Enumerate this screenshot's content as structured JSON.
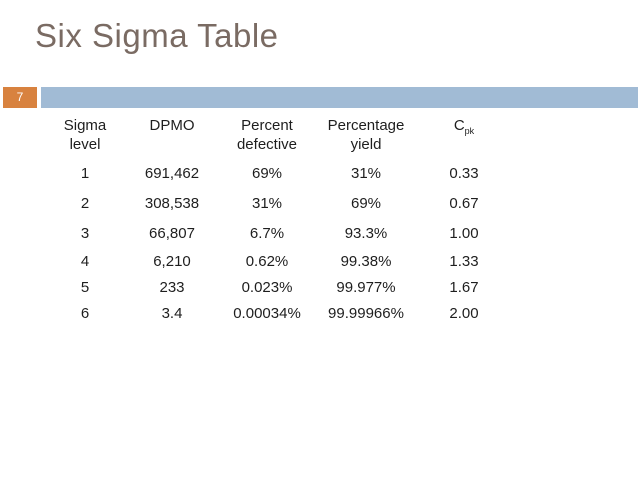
{
  "slide": {
    "title": "Six Sigma Table",
    "page_number": "7"
  },
  "colors": {
    "background": "#ffffff",
    "title_text": "#7a6b63",
    "page_number_box": "#d8823f",
    "page_number_text": "#ffffff",
    "divider_bar": "#a1bbd5",
    "table_text": "#1e1e1e"
  },
  "table": {
    "headers": [
      {
        "line1": "Sigma",
        "line2": "level"
      },
      {
        "line1": "DPMO"
      },
      {
        "line1": "Percent",
        "line2": "defective"
      },
      {
        "line1": "Percentage",
        "line2": "yield"
      },
      {
        "text": "C",
        "sub": "pk"
      }
    ],
    "rows": [
      [
        "1",
        "691,462",
        "69%",
        "31%",
        "0.33"
      ],
      [
        "2",
        "308,538",
        "31%",
        "69%",
        "0.67"
      ],
      [
        "3",
        "66,807",
        "6.7%",
        "93.3%",
        "1.00"
      ],
      [
        "4",
        "6,210",
        "0.62%",
        "99.38%",
        "1.33"
      ],
      [
        "5",
        "233",
        "0.023%",
        "99.977%",
        "1.67"
      ],
      [
        "6",
        "3.4",
        "0.00034%",
        "99.99966%",
        "2.00"
      ]
    ]
  },
  "chart_data": {
    "type": "table",
    "title": "Six Sigma Table",
    "columns": [
      "Sigma level",
      "DPMO",
      "Percent defective",
      "Percentage yield",
      "Cpk"
    ],
    "rows": [
      [
        "1",
        "691,462",
        "69%",
        "31%",
        "0.33"
      ],
      [
        "2",
        "308,538",
        "31%",
        "69%",
        "0.67"
      ],
      [
        "3",
        "66,807",
        "6.7%",
        "93.3%",
        "1.00"
      ],
      [
        "4",
        "6,210",
        "0.62%",
        "99.38%",
        "1.33"
      ],
      [
        "5",
        "233",
        "0.023%",
        "99.977%",
        "1.67"
      ],
      [
        "6",
        "3.4",
        "0.00034%",
        "99.99966%",
        "2.00"
      ]
    ]
  }
}
